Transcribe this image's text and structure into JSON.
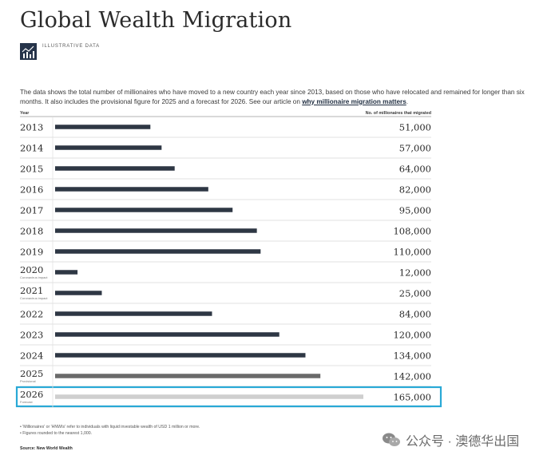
{
  "header": {
    "title": "Global Wealth Migration",
    "badge_label": "ILLUSTRATIVE DATA",
    "badge_icon": "bar-chart-icon"
  },
  "description": {
    "text_before": "The data shows the total number of millionaires who have moved to a new country each year since 2013, based on those who have relocated and remained for longer than six months. It also includes the provisional figure for 2025 and a forecast for 2026. See our article on ",
    "link_text": "why millionaire migration matters",
    "text_after": "."
  },
  "chart_data": {
    "type": "bar",
    "orientation": "horizontal",
    "xlabel": "Year",
    "ylabel": "No. of millionaires that migrated",
    "categories": [
      "2013",
      "2014",
      "2015",
      "2016",
      "2017",
      "2018",
      "2019",
      "2020",
      "2021",
      "2022",
      "2023",
      "2024",
      "2025",
      "2026"
    ],
    "values": [
      51000,
      57000,
      64000,
      82000,
      95000,
      108000,
      110000,
      12000,
      25000,
      84000,
      120000,
      134000,
      142000,
      165000
    ],
    "value_labels": [
      "51,000",
      "57,000",
      "64,000",
      "82,000",
      "95,000",
      "108,000",
      "110,000",
      "12,000",
      "25,000",
      "84,000",
      "120,000",
      "134,000",
      "142,000",
      "165,000"
    ],
    "row_notes": [
      "",
      "",
      "",
      "",
      "",
      "",
      "",
      "Coronavirus impact",
      "Coronavirus impact",
      "",
      "",
      "",
      "Provisional",
      "Forecast"
    ],
    "bar_kinds": [
      "actual",
      "actual",
      "actual",
      "actual",
      "actual",
      "actual",
      "actual",
      "actual",
      "actual",
      "actual",
      "actual",
      "actual",
      "provisional",
      "forecast"
    ],
    "xlim": [
      0,
      165000
    ],
    "highlighted_category": "2026",
    "colors": {
      "actual": "#2e3744",
      "provisional": "#6a6a6a",
      "forecast": "#cfcfcf",
      "highlight_border": "#29a9d6",
      "gridline": "#d6d6d6"
    }
  },
  "footnotes": [
    "'Millionaires' or 'HNWIs' refer to individuals with liquid investable wealth of USD 1 million or more.",
    "Figures rounded to the nearest 1,000."
  ],
  "source": "Source: New World Wealth",
  "watermark": {
    "text": "公众号 · 澳德华出国",
    "icon": "wechat-icon"
  }
}
